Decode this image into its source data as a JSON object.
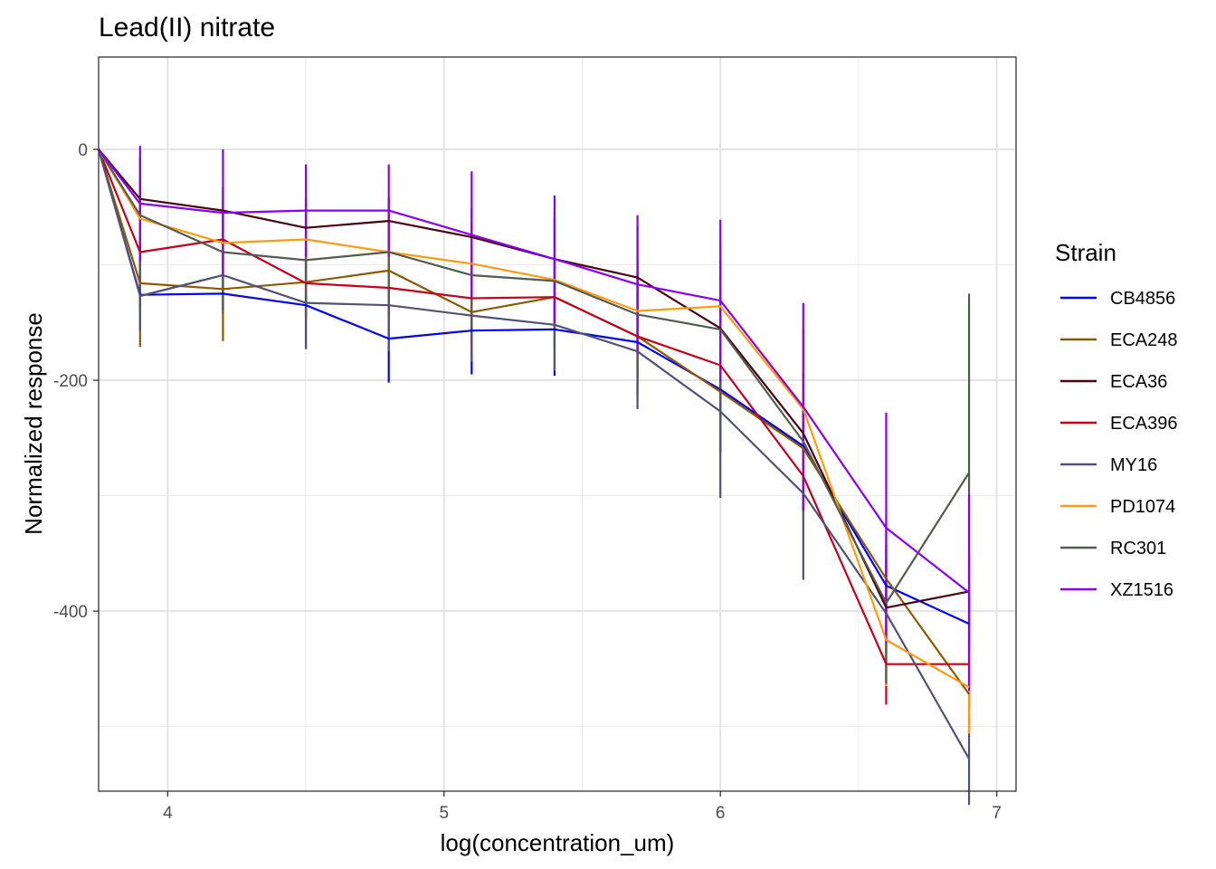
{
  "chart_data": {
    "type": "line",
    "title": "Lead(II) nitrate",
    "xlabel": "log(concentration_um)",
    "ylabel": "Normalized response",
    "xlim": [
      3.75,
      7.07
    ],
    "ylim": [
      -556,
      80
    ],
    "x_ticks": [
      4,
      5,
      6,
      7
    ],
    "x_tick_labels": [
      "4",
      "5",
      "6",
      "7"
    ],
    "x_minor_ticks": [
      4.5,
      5.5,
      6.5
    ],
    "y_ticks": [
      0,
      -200,
      -400
    ],
    "y_tick_labels": [
      "0",
      "-200",
      "-400"
    ],
    "y_minor_ticks": [
      -100,
      -300,
      -500
    ],
    "grid": true,
    "legend": {
      "title": "Strain",
      "position": "right"
    },
    "x": [
      3.75,
      3.9,
      4.2,
      4.5,
      4.8,
      5.1,
      5.4,
      5.7,
      6.0,
      6.3,
      6.6,
      6.9
    ],
    "series": [
      {
        "name": "CB4856",
        "color": "#0000FF",
        "values": [
          0,
          -126,
          -125,
          -135,
          -164,
          -157,
          -156,
          -167,
          -208,
          -257,
          -378,
          -411
        ],
        "error": [
          0,
          10,
          18,
          38,
          38,
          38,
          40,
          45,
          55,
          35,
          25,
          25
        ]
      },
      {
        "name": "ECA248",
        "color": "#8B5A00",
        "values": [
          0,
          -116,
          -121,
          -115,
          -105,
          -141,
          -128,
          -162,
          -210,
          -259,
          -372,
          -472
        ],
        "error": [
          0,
          55,
          45,
          30,
          25,
          35,
          30,
          55,
          50,
          30,
          30,
          30
        ]
      },
      {
        "name": "ECA36",
        "color": "#4B0010",
        "values": [
          0,
          -43,
          -53,
          -68,
          -62,
          -76,
          -95,
          -111,
          -155,
          -246,
          -397,
          -383
        ],
        "error": [
          0,
          20,
          20,
          25,
          20,
          25,
          35,
          45,
          50,
          25,
          25,
          30
        ]
      },
      {
        "name": "ECA396",
        "color": "#C5001C",
        "values": [
          0,
          -89,
          -78,
          -116,
          -120,
          -129,
          -128,
          -162,
          -187,
          -283,
          -446,
          -446
        ],
        "error": [
          0,
          25,
          25,
          30,
          25,
          40,
          30,
          35,
          45,
          30,
          35,
          40
        ]
      },
      {
        "name": "MY16",
        "color": "#525277",
        "values": [
          0,
          -127,
          -109,
          -133,
          -135,
          -144,
          -152,
          -175,
          -227,
          -298,
          -402,
          -528
        ],
        "error": [
          0,
          30,
          30,
          40,
          40,
          40,
          40,
          50,
          75,
          75,
          60,
          40
        ]
      },
      {
        "name": "PD1074",
        "color": "#FF9A0E",
        "values": [
          0,
          -60,
          -81,
          -78,
          -89,
          -99,
          -113,
          -140,
          -136,
          -225,
          -425,
          -466
        ],
        "error": [
          0,
          35,
          30,
          35,
          30,
          40,
          45,
          50,
          55,
          70,
          40,
          40
        ]
      },
      {
        "name": "RC301",
        "color": "#525C50",
        "values": [
          0,
          -57,
          -89,
          -96,
          -89,
          -109,
          -114,
          -143,
          -156,
          -253,
          -393,
          -280
        ],
        "error": [
          0,
          50,
          45,
          50,
          45,
          45,
          60,
          50,
          60,
          60,
          70,
          155
        ]
      },
      {
        "name": "XZ1516",
        "color": "#8B00EE",
        "values": [
          0,
          -47,
          -55,
          -53,
          -53,
          -74,
          -95,
          -117,
          -131,
          -223,
          -328,
          -384
        ],
        "error": [
          0,
          50,
          55,
          40,
          40,
          55,
          55,
          60,
          70,
          90,
          100,
          85
        ]
      }
    ]
  }
}
